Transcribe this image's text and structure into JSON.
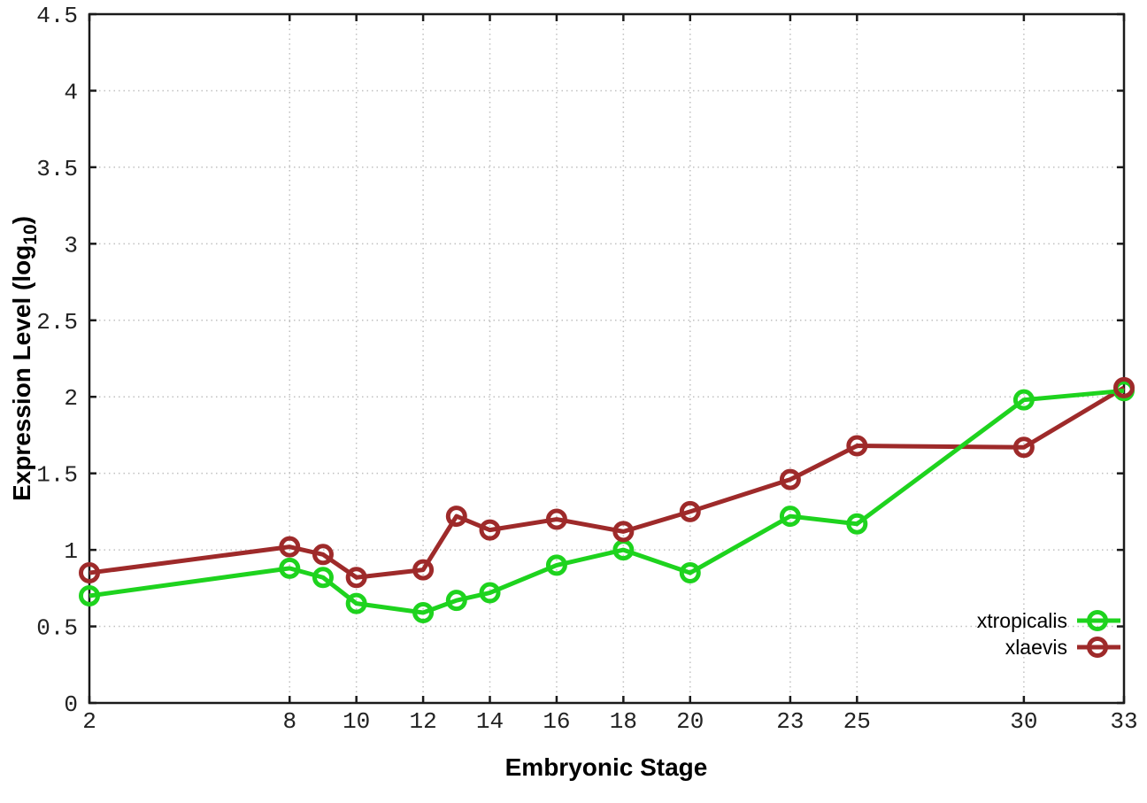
{
  "chart_data": {
    "type": "line",
    "title": "",
    "xlabel": "Embryonic Stage",
    "ylabel": "Expression Level (log10)",
    "ylabel_parts": {
      "main": "Expression Level (log",
      "sub": "10",
      "close": ")"
    },
    "x": [
      2,
      8,
      9,
      10,
      12,
      13,
      14,
      16,
      18,
      20,
      23,
      25,
      30,
      33
    ],
    "xticks": [
      2,
      8,
      10,
      12,
      14,
      16,
      18,
      20,
      23,
      25,
      30,
      33
    ],
    "yticks": [
      0,
      0.5,
      1,
      1.5,
      2,
      2.5,
      3,
      3.5,
      4,
      4.5
    ],
    "xlim": [
      2,
      33
    ],
    "ylim": [
      0,
      4.5
    ],
    "grid": true,
    "legend_position": "bottom-right-inside",
    "series": [
      {
        "name": "xtropicalis",
        "color": "#1ed31e",
        "marker": "open-circle",
        "values": [
          0.7,
          0.88,
          0.82,
          0.65,
          0.59,
          0.67,
          0.72,
          0.9,
          1.0,
          0.85,
          1.22,
          1.17,
          1.98,
          2.04
        ]
      },
      {
        "name": "xlaevis",
        "color": "#9e2a2a",
        "marker": "open-circle",
        "values": [
          0.85,
          1.02,
          0.97,
          0.82,
          0.87,
          1.22,
          1.13,
          1.2,
          1.12,
          1.25,
          1.46,
          1.68,
          1.67,
          2.06
        ]
      }
    ],
    "colors": {
      "border": "#1a1a1a",
      "grid": "#c0c0c0",
      "tick_text": "#222222",
      "label_text": "#000000",
      "background": "#ffffff"
    }
  }
}
